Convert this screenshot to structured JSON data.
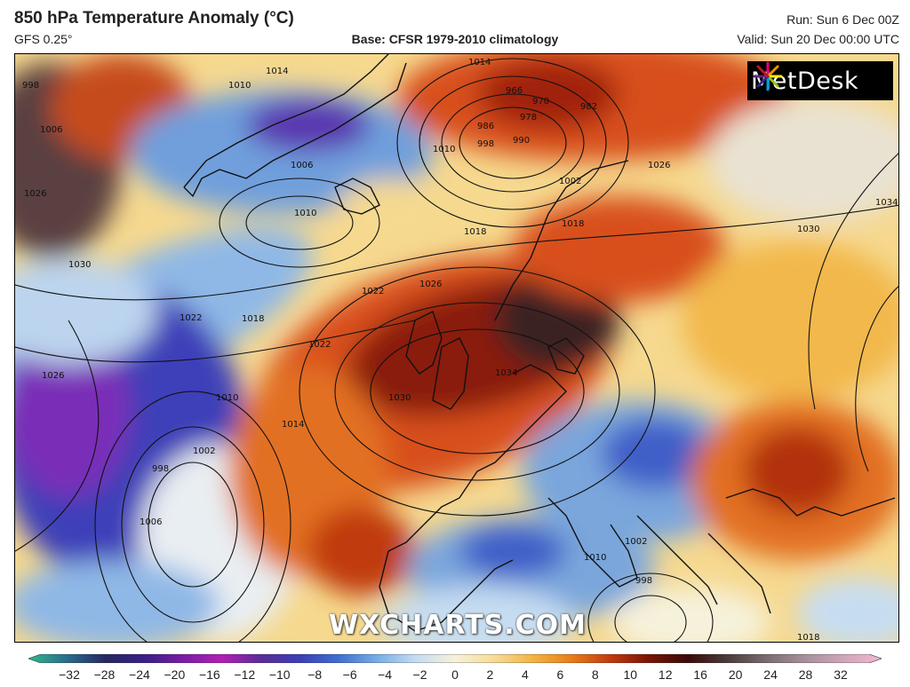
{
  "header": {
    "title": "850 hPa Temperature Anomaly (°C)",
    "model": "GFS 0.25°",
    "base": "Base: CFSR 1979-2010 climatology",
    "run": "Run: Sun 6 Dec 00Z",
    "valid": "Valid: Sun 20 Dec 00:00 UTC"
  },
  "logo": {
    "text": "MetDesk",
    "icon": "metdesk-starburst-logo"
  },
  "watermark": "WXCHARTS.COM",
  "isobars": [
    "998",
    "1006",
    "1010",
    "1014",
    "1026",
    "1006",
    "1010",
    "1018",
    "1022",
    "1026",
    "1030",
    "1034",
    "1030",
    "1026",
    "1022",
    "1018",
    "1010",
    "1002",
    "998",
    "1006",
    "1002",
    "998",
    "1010",
    "1014",
    "1018",
    "1022",
    "966",
    "970",
    "978",
    "982",
    "986",
    "990",
    "998",
    "1002",
    "1010",
    "1014",
    "1018",
    "1026",
    "1030",
    "1034"
  ],
  "colorbar": {
    "ticks": [
      "−32",
      "−28",
      "−24",
      "−20",
      "−16",
      "−12",
      "−10",
      "−8",
      "−6",
      "−4",
      "−2",
      "0",
      "2",
      "4",
      "6",
      "8",
      "10",
      "12",
      "16",
      "20",
      "24",
      "28",
      "32"
    ],
    "colors": [
      "#2fb889",
      "#2a6b8c",
      "#26285f",
      "#3a1f85",
      "#7a1ca8",
      "#b21fb4",
      "#5a2c9a",
      "#3b3fb6",
      "#3f6fd0",
      "#78aee4",
      "#c6ddf1",
      "#f6f1da",
      "#f7dc97",
      "#f4b443",
      "#e97d18",
      "#c23a0e",
      "#7a1406",
      "#3a0b07",
      "#4a3a3a",
      "#7a6a6f",
      "#a58f9a",
      "#cfa5b8",
      "#f2b8d0"
    ]
  }
}
